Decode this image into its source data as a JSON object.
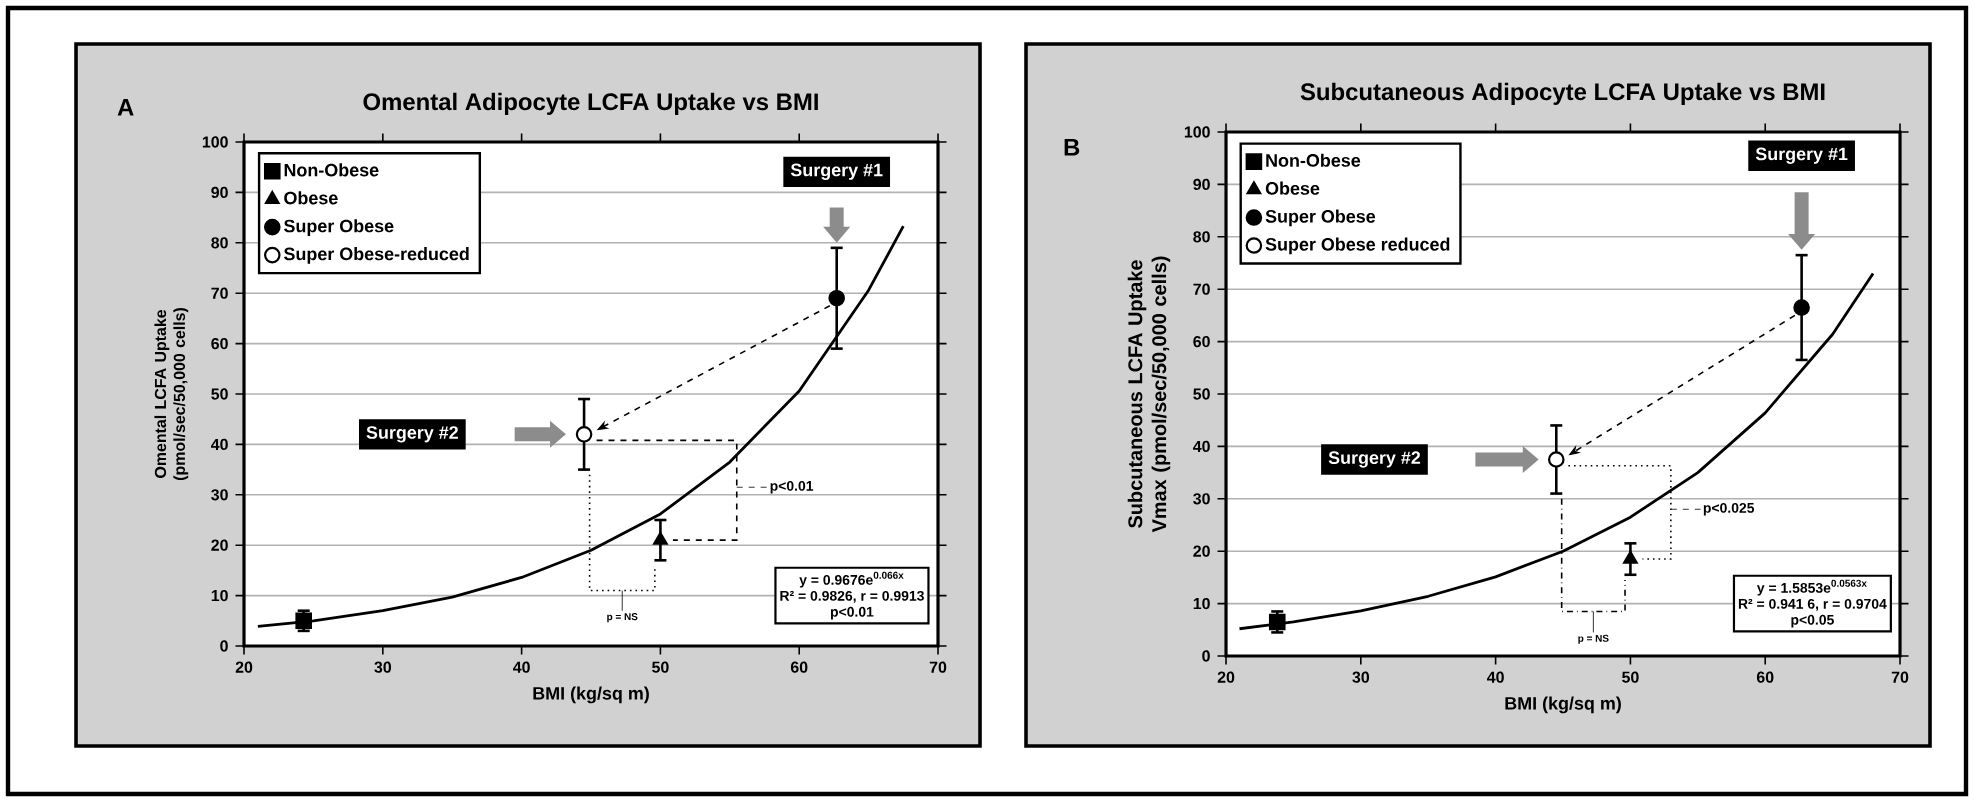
{
  "chart_data": [
    {
      "type": "scatter",
      "title": "Omental Adipocyte LCFA Uptake vs BMI",
      "xlabel": "BMI (kg/sq m)",
      "ylabel": "Omental LCFA Uptake (pmol/sec/50,000 cells)",
      "xlim": [
        20,
        70
      ],
      "ylim": [
        0,
        100
      ],
      "xticks": [
        20,
        30,
        40,
        50,
        60,
        70
      ],
      "yticks": [
        0,
        10,
        20,
        30,
        40,
        50,
        60,
        70,
        80,
        90,
        100
      ],
      "grid": "y",
      "legend": "top left",
      "series": [
        {
          "name": "Non-Obese",
          "color": "#000000",
          "marker": "square",
          "x": [
            24.3
          ],
          "values": [
            5
          ],
          "errors": [
            2
          ]
        },
        {
          "name": "Obese",
          "color": "#000000",
          "marker": "triangle",
          "x": [
            50
          ],
          "values": [
            21
          ],
          "errors": [
            4
          ]
        },
        {
          "name": "Super Obese",
          "color": "#000000",
          "marker": "circle",
          "x": [
            62.7
          ],
          "values": [
            69
          ],
          "errors": [
            10
          ]
        },
        {
          "name": "Super Obese-reduced",
          "color": "#ffffff",
          "marker": "circle",
          "x": [
            44.5
          ],
          "values": [
            42
          ],
          "errors": [
            7
          ]
        },
        {
          "type": "line",
          "color": "#000000",
          "line_style": "solid",
          "x": [
            21,
            25,
            30,
            35,
            40,
            45,
            50,
            55,
            60,
            65,
            67.5
          ],
          "values": [
            3.9,
            5,
            7,
            9.7,
            13.6,
            19,
            26.2,
            36.5,
            50.6,
            70.6,
            83.3
          ]
        }
      ],
      "annotations": [
        "Surgery #1",
        "Surgery #2",
        "p<0.01",
        "p = NS",
        "y = 0.9676e$^{0.066x}$",
        "R² = 0.9826, r = 0.9913",
        "p<0.01",
        "A"
      ]
    },
    {
      "type": "scatter",
      "title": "Subcutaneous Adipocyte LCFA Uptake vs BMI",
      "xlabel": "BMI (kg/sq m)",
      "ylabel": "Subcutaneous LCFA Uptake Vmax (pmol/sec/50,000 cells)",
      "xlim": [
        20,
        70
      ],
      "ylim": [
        0,
        100
      ],
      "xticks": [
        20,
        30,
        40,
        50,
        60,
        70
      ],
      "yticks": [
        0,
        10,
        20,
        30,
        40,
        50,
        60,
        70,
        80,
        90,
        100
      ],
      "grid": "y",
      "legend": "top left",
      "series": [
        {
          "name": "Non-Obese",
          "color": "#000000",
          "marker": "square",
          "x": [
            23.8
          ],
          "values": [
            6.5
          ],
          "errors": [
            2
          ]
        },
        {
          "name": "Obese",
          "color": "#000000",
          "marker": "triangle",
          "x": [
            50
          ],
          "values": [
            18.5
          ],
          "errors": [
            3
          ]
        },
        {
          "name": "Super Obese",
          "color": "#000000",
          "marker": "circle",
          "x": [
            62.7
          ],
          "values": [
            66.5
          ],
          "errors": [
            10
          ]
        },
        {
          "name": "Super Obese reduced",
          "color": "#ffffff",
          "marker": "circle",
          "x": [
            44.5
          ],
          "values": [
            37.5
          ],
          "errors": [
            6.5
          ]
        },
        {
          "type": "line",
          "color": "#000000",
          "line_style": "solid",
          "x": [
            21,
            25,
            30,
            35,
            40,
            45,
            50,
            55,
            60,
            65,
            68
          ],
          "values": [
            5.2,
            6.5,
            8.6,
            11.4,
            15.1,
            20,
            26.5,
            35,
            46.4,
            61.4,
            73
          ]
        }
      ],
      "annotations": [
        "Surgery #1",
        "Surgery #2",
        "p<0.025",
        "p = NS",
        "y = 1.5853e$^{0.0563x}$",
        "R² = 0.941 6, r = 0.9704",
        "p<0.05",
        "B"
      ]
    }
  ]
}
